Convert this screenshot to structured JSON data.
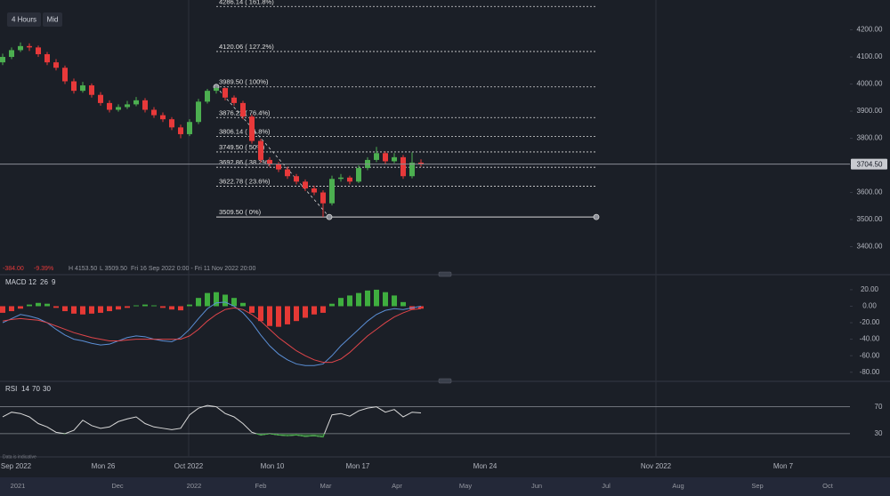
{
  "toolbar": {
    "interval": "4 Hours",
    "price_mode": "Mid"
  },
  "info": {
    "change": "-384.00",
    "change_pct": "-9.39%",
    "high": "H 4153.50",
    "low": "L 3509.50",
    "range": "Fri 16 Sep 2022 0:00 - Fri 11 Nov 2022 20:00"
  },
  "disclaimer": "Data is indicative",
  "navigator_labels": [
    "2021",
    "Dec",
    "2022",
    "Feb",
    "Mar",
    "Apr",
    "May",
    "Jun",
    "Jul",
    "Aug",
    "Sep",
    "Oct"
  ],
  "chart_data": [
    {
      "type": "candlestick",
      "up_color": "#4caf50",
      "down_color": "#e8393a",
      "ylim": [
        3300,
        4310
      ],
      "yticks": [
        {
          "value": 4200,
          "label": "4200.00"
        },
        {
          "value": 4100,
          "label": "4100.00"
        },
        {
          "value": 4000,
          "label": "4000.00"
        },
        {
          "value": 3900,
          "label": "3900.00"
        },
        {
          "value": 3800,
          "label": "3800.00"
        },
        {
          "value": 3700,
          "label": "3700.00"
        },
        {
          "value": 3600,
          "label": "3600.00"
        },
        {
          "value": 3500,
          "label": "3500.00"
        },
        {
          "value": 3400,
          "label": "3400.00"
        }
      ],
      "x_labels": [
        "Sep 2022",
        "Mon 26",
        "Oct 2022",
        "Mon 10",
        "Mon 17",
        "Mon 24",
        "Nov 2022",
        "Mon 7"
      ],
      "last_price": {
        "value": 3704.5,
        "label": "3704.50"
      },
      "fib_levels": [
        {
          "value": 4286.14,
          "label": "4286.14 ( 161.8%)"
        },
        {
          "value": 4120.06,
          "label": "4120.06 ( 127.2%)"
        },
        {
          "value": 3989.5,
          "label": "3989.50 ( 100%)"
        },
        {
          "value": 3876.22,
          "label": "3876.22 ( 76.4%)"
        },
        {
          "value": 3806.14,
          "label": "3806.14 ( 61.8%)"
        },
        {
          "value": 3749.5,
          "label": "3749.50 ( 50%)"
        },
        {
          "value": 3692.86,
          "label": "3692.86 ( 38.2%)"
        },
        {
          "value": 3622.78,
          "label": "3622.78 ( 23.6%)"
        },
        {
          "value": 3509.5,
          "label": "3509.50 ( 0%)"
        }
      ],
      "open": [
        4080,
        4100,
        4125,
        4140,
        4135,
        4110,
        4080,
        4060,
        4010,
        3975,
        3995,
        3960,
        3930,
        3905,
        3915,
        3925,
        3940,
        3905,
        3885,
        3870,
        3840,
        3815,
        3860,
        3935,
        3975,
        3985,
        3950,
        3930,
        3880,
        3790,
        3720,
        3705,
        3685,
        3660,
        3640,
        3615,
        3600,
        3560,
        3650,
        3655,
        3640,
        3690,
        3720,
        3745,
        3715,
        3730,
        3660,
        3710
      ],
      "high": [
        4112,
        4135,
        4153.5,
        4150,
        4142,
        4118,
        4092,
        4068,
        4020,
        4008,
        4002,
        3970,
        3940,
        3925,
        3938,
        3952,
        3948,
        3915,
        3895,
        3878,
        3850,
        3870,
        3945,
        3982,
        3989.5,
        3988,
        3958,
        3938,
        3888,
        3798,
        3730,
        3712,
        3695,
        3668,
        3648,
        3625,
        3608,
        3662,
        3668,
        3662,
        3700,
        3730,
        3768,
        3752,
        3745,
        3738,
        3748,
        3722
      ],
      "low": [
        4070,
        4092,
        4118,
        4122,
        4100,
        4070,
        4050,
        4000,
        3965,
        3968,
        3950,
        3920,
        3895,
        3898,
        3908,
        3918,
        3895,
        3875,
        3860,
        3830,
        3800,
        3808,
        3852,
        3928,
        3965,
        3940,
        3920,
        3870,
        3780,
        3710,
        3695,
        3675,
        3650,
        3630,
        3605,
        3590,
        3509.5,
        3552,
        3640,
        3630,
        3635,
        3682,
        3712,
        3705,
        3708,
        3650,
        3652,
        3695
      ],
      "close": [
        4100,
        4125,
        4140,
        4135,
        4110,
        4080,
        4060,
        4010,
        3975,
        3995,
        3960,
        3930,
        3905,
        3915,
        3925,
        3940,
        3905,
        3885,
        3870,
        3840,
        3815,
        3860,
        3935,
        3975,
        3985,
        3950,
        3930,
        3880,
        3790,
        3720,
        3705,
        3685,
        3660,
        3640,
        3615,
        3600,
        3560,
        3650,
        3655,
        3640,
        3690,
        3720,
        3745,
        3715,
        3730,
        3660,
        3710,
        3704.5
      ]
    },
    {
      "type": "macd",
      "title": "MACD",
      "params": [
        12,
        26,
        9
      ],
      "ylim": [
        -90,
        35
      ],
      "yticks": [
        {
          "value": 20,
          "label": "20.00"
        },
        {
          "value": 0,
          "label": "0.00"
        },
        {
          "value": -20,
          "label": "-20.00"
        },
        {
          "value": -40,
          "label": "-40.00"
        },
        {
          "value": -60,
          "label": "-60.00"
        },
        {
          "value": -80,
          "label": "-80.00"
        }
      ],
      "histogram": {
        "up_color": "#3fae3f",
        "down_color": "#e53935",
        "values": [
          -8,
          -6,
          -3,
          2,
          4,
          3,
          -2,
          -6,
          -9,
          -10,
          -9,
          -8,
          -6,
          -4,
          -2,
          1,
          2,
          1,
          -2,
          -4,
          -5,
          2,
          10,
          16,
          17,
          14,
          10,
          4,
          -8,
          -18,
          -24,
          -25,
          -22,
          -18,
          -14,
          -10,
          -8,
          3,
          10,
          13,
          16,
          19,
          20,
          17,
          13,
          5,
          -4,
          -3
        ]
      },
      "series": [
        {
          "color": "#5b8fd6",
          "values": [
            -20,
            -15,
            -10,
            -12,
            -15,
            -20,
            -28,
            -35,
            -40,
            -42,
            -45,
            -47,
            -46,
            -42,
            -38,
            -36,
            -37,
            -40,
            -42,
            -43,
            -38,
            -28,
            -15,
            -3,
            4,
            5,
            0,
            -8,
            -20,
            -35,
            -48,
            -58,
            -65,
            -70,
            -72,
            -72,
            -70,
            -60,
            -48,
            -38,
            -28,
            -18,
            -10,
            -5,
            -3,
            -4,
            -2,
            0
          ]
        },
        {
          "color": "#e0454a",
          "values": [
            -18,
            -16,
            -15,
            -16,
            -17,
            -20,
            -24,
            -28,
            -32,
            -35,
            -38,
            -40,
            -42,
            -42,
            -41,
            -40,
            -40,
            -40,
            -40,
            -40,
            -40,
            -36,
            -28,
            -18,
            -10,
            -4,
            -2,
            -4,
            -10,
            -18,
            -28,
            -38,
            -46,
            -54,
            -60,
            -65,
            -68,
            -68,
            -64,
            -56,
            -46,
            -36,
            -28,
            -20,
            -13,
            -8,
            -4,
            -3
          ]
        }
      ]
    },
    {
      "type": "rsi",
      "title": "RSI",
      "params": [
        14,
        70,
        30
      ],
      "ylim": [
        -2,
        104
      ],
      "yticks": [
        70,
        30
      ],
      "oversold_color": "#3fae3f",
      "series": [
        {
          "color": "#d8d8d8",
          "values": [
            55,
            62,
            60,
            55,
            45,
            40,
            32,
            30,
            35,
            50,
            42,
            38,
            40,
            48,
            52,
            55,
            45,
            40,
            38,
            36,
            38,
            58,
            68,
            72,
            70,
            60,
            55,
            45,
            32,
            28,
            30,
            28,
            27,
            28,
            26,
            27,
            25,
            58,
            60,
            56,
            64,
            68,
            70,
            62,
            66,
            55,
            62,
            61
          ]
        }
      ]
    }
  ]
}
